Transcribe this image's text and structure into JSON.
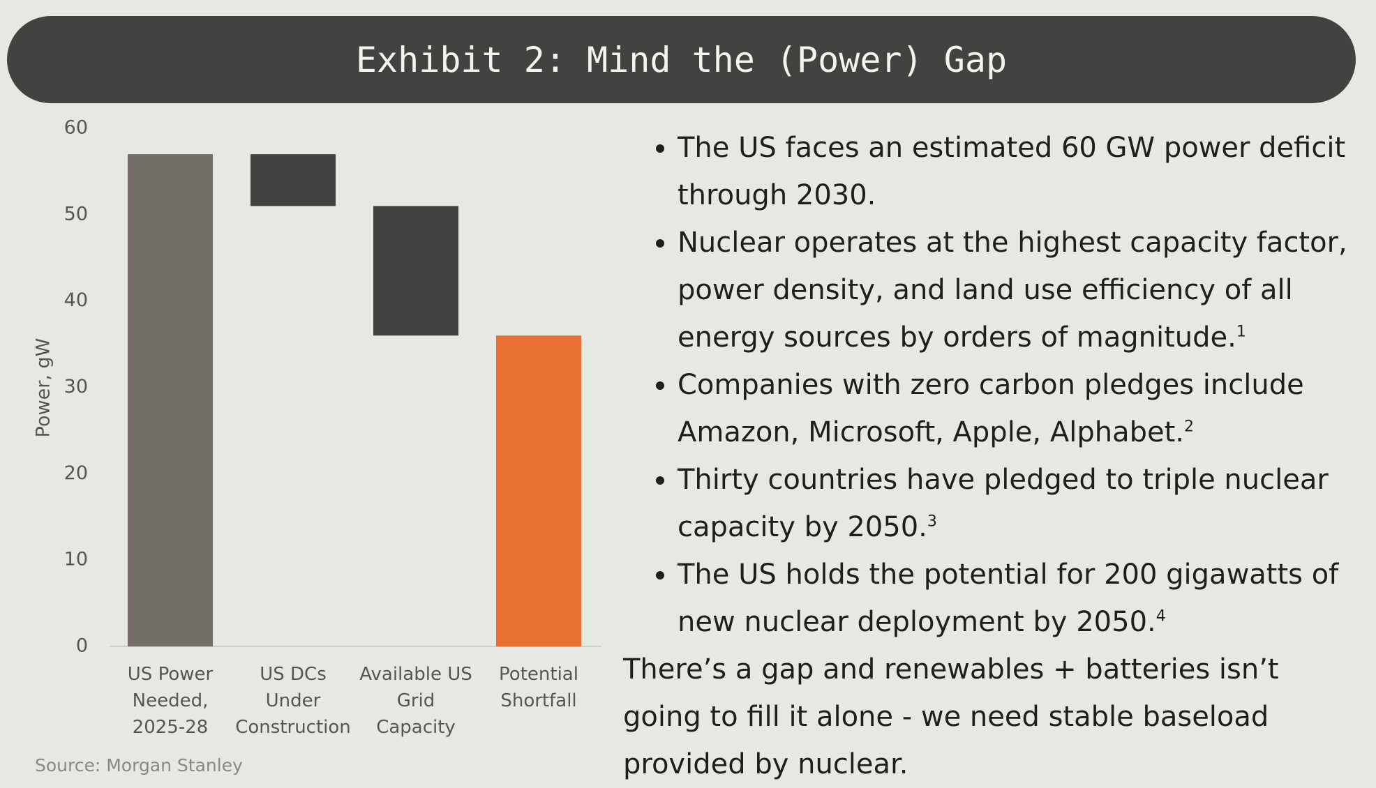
{
  "chart_data": {
    "type": "waterfall",
    "title": "Exhibit 2: Mind the (Power) Gap",
    "y_label": "Power, gW",
    "categories": [
      "US Power Needed, 2025-28",
      "US DCs Under Construction",
      "Available US Grid Capacity",
      "Potential Shortfall"
    ],
    "values": [
      57,
      -6,
      -15,
      36
    ],
    "colors": [
      "#736f68",
      "#434240",
      "#434240",
      "#e87033"
    ],
    "ylim": [
      0,
      60
    ],
    "yticks": [
      0,
      10,
      20,
      30,
      40,
      50,
      60
    ],
    "grid": false,
    "source": "Source: Morgan Stanley"
  },
  "text": {
    "bullets": [
      {
        "text": "The US faces an estimated 60 GW power deficit through 2030."
      },
      {
        "text": "Nuclear operates at the highest capacity factor, power density, and land use efficiency of all energy sources by orders of magnitude.",
        "note": "1"
      },
      {
        "text": "Companies with zero carbon pledges include Amazon, Microsoft, Apple, Alphabet.",
        "note": "2"
      },
      {
        "text": "Thirty countries have pledged to triple nuclear capacity by 2050.",
        "note": "3"
      },
      {
        "text": "The US holds the potential for 200 gigawatts of new nuclear deployment by 2050.",
        "note": "4"
      }
    ],
    "conclusion": "There’s a gap and renewables + batteries isn’t going to fill it alone - we need stable baseload provided by nuclear."
  }
}
